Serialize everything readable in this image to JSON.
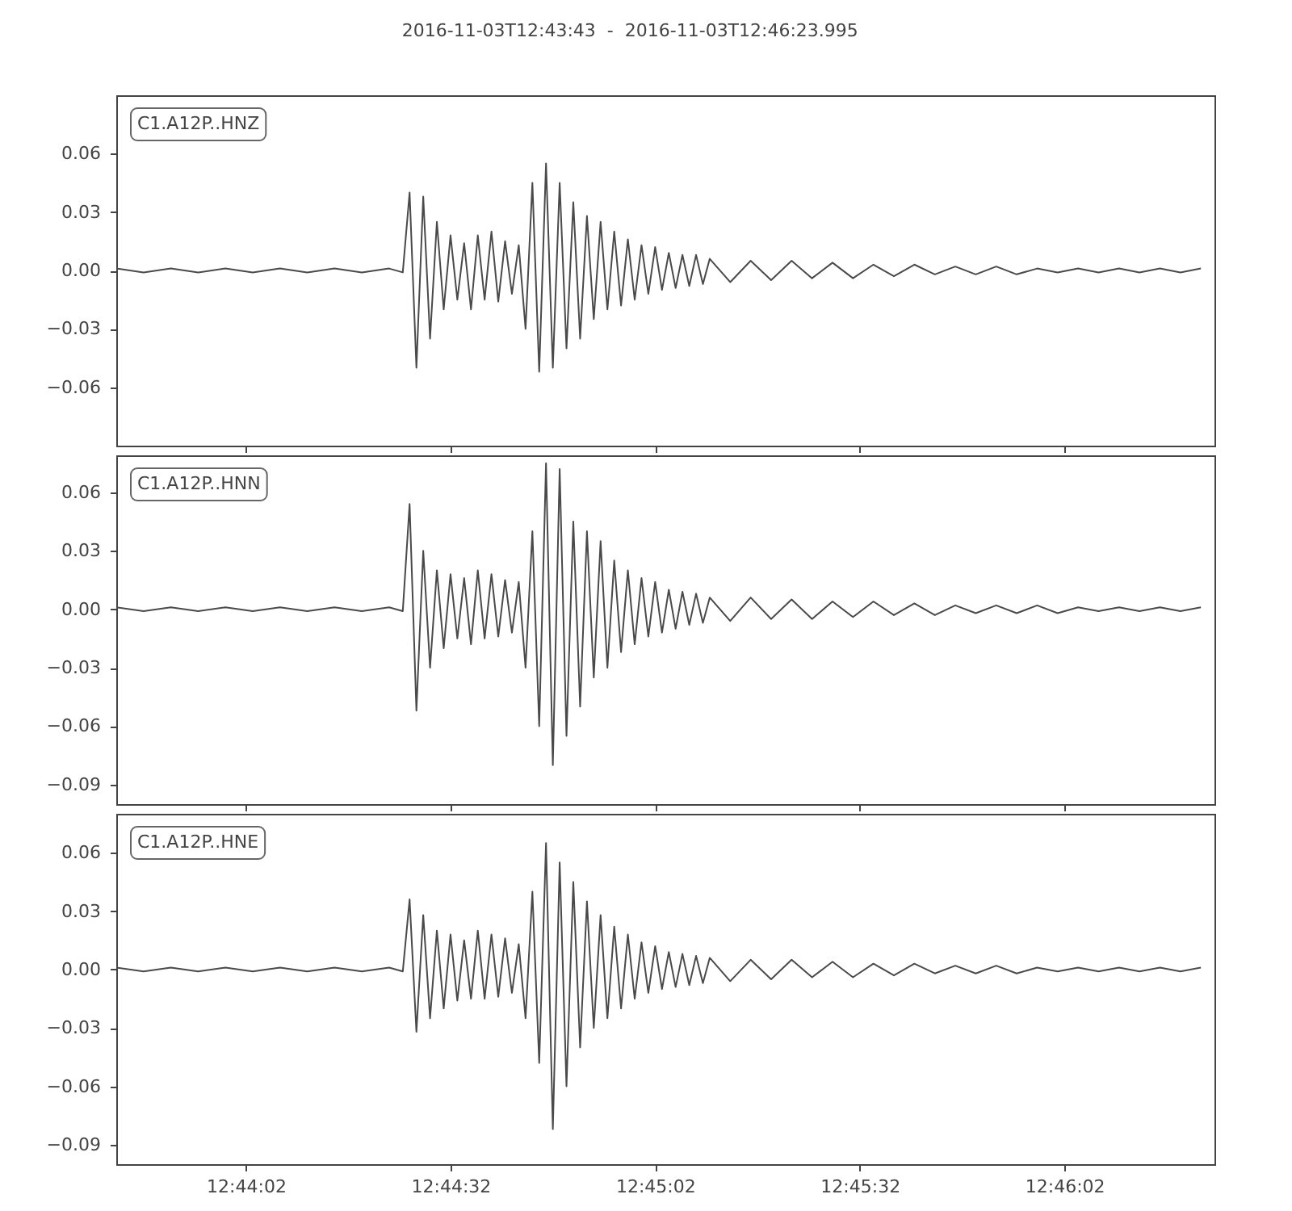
{
  "chart_data": [
    {
      "type": "line",
      "title": "2016-11-03T12:43:43  -  2016-11-03T12:46:23.995",
      "tick_labels": "y",
      "grid": false,
      "legend": "top left",
      "xlim": [
        "2016-11-03T12:43:43",
        "2016-11-03T12:46:23.995"
      ],
      "xticks": [
        {
          "value": "2016-11-03T12:44:02",
          "label": null
        },
        {
          "value": "2016-11-03T12:44:32",
          "label": null
        },
        {
          "value": "2016-11-03T12:45:02",
          "label": null
        },
        {
          "value": "2016-11-03T12:45:32",
          "label": null
        },
        {
          "value": "2016-11-03T12:46:02",
          "label": null
        }
      ],
      "ylim": [
        -0.09,
        0.09
      ],
      "yticks": [
        {
          "value": -0.06,
          "label": "−0.06"
        },
        {
          "value": -0.03,
          "label": "−0.03"
        },
        {
          "value": 0,
          "label": "0.00"
        },
        {
          "value": 0.03,
          "label": "0.03"
        },
        {
          "value": 0.06,
          "label": "0.06"
        }
      ],
      "x": [
        "2016-11-03T12:43:43",
        "2016-11-03T12:43:47",
        "2016-11-03T12:43:51",
        "2016-11-03T12:43:55",
        "2016-11-03T12:43:59",
        "2016-11-03T12:44:03",
        "2016-11-03T12:44:07",
        "2016-11-03T12:44:11",
        "2016-11-03T12:44:15",
        "2016-11-03T12:44:19",
        "2016-11-03T12:44:23",
        "2016-11-03T12:44:25",
        "2016-11-03T12:44:26",
        "2016-11-03T12:44:27",
        "2016-11-03T12:44:28",
        "2016-11-03T12:44:29",
        "2016-11-03T12:44:30",
        "2016-11-03T12:44:31",
        "2016-11-03T12:44:32",
        "2016-11-03T12:44:33",
        "2016-11-03T12:44:34",
        "2016-11-03T12:44:35",
        "2016-11-03T12:44:36",
        "2016-11-03T12:44:37",
        "2016-11-03T12:44:38",
        "2016-11-03T12:44:39",
        "2016-11-03T12:44:40",
        "2016-11-03T12:44:41",
        "2016-11-03T12:44:42",
        "2016-11-03T12:44:43",
        "2016-11-03T12:44:44",
        "2016-11-03T12:44:45",
        "2016-11-03T12:44:46",
        "2016-11-03T12:44:47",
        "2016-11-03T12:44:48",
        "2016-11-03T12:44:49",
        "2016-11-03T12:44:50",
        "2016-11-03T12:44:51",
        "2016-11-03T12:44:52",
        "2016-11-03T12:44:53",
        "2016-11-03T12:44:54",
        "2016-11-03T12:44:55",
        "2016-11-03T12:44:56",
        "2016-11-03T12:44:57",
        "2016-11-03T12:44:58",
        "2016-11-03T12:44:59",
        "2016-11-03T12:45:00",
        "2016-11-03T12:45:01",
        "2016-11-03T12:45:02",
        "2016-11-03T12:45:03",
        "2016-11-03T12:45:04",
        "2016-11-03T12:45:05",
        "2016-11-03T12:45:06",
        "2016-11-03T12:45:07",
        "2016-11-03T12:45:08",
        "2016-11-03T12:45:09",
        "2016-11-03T12:45:10",
        "2016-11-03T12:45:13",
        "2016-11-03T12:45:16",
        "2016-11-03T12:45:19",
        "2016-11-03T12:45:22",
        "2016-11-03T12:45:25",
        "2016-11-03T12:45:28",
        "2016-11-03T12:45:31",
        "2016-11-03T12:45:34",
        "2016-11-03T12:45:37",
        "2016-11-03T12:45:40",
        "2016-11-03T12:45:43",
        "2016-11-03T12:45:46",
        "2016-11-03T12:45:49",
        "2016-11-03T12:45:52",
        "2016-11-03T12:45:55",
        "2016-11-03T12:45:58",
        "2016-11-03T12:46:01",
        "2016-11-03T12:46:04",
        "2016-11-03T12:46:07",
        "2016-11-03T12:46:10",
        "2016-11-03T12:46:13",
        "2016-11-03T12:46:16",
        "2016-11-03T12:46:19",
        "2016-11-03T12:46:22"
      ],
      "series": [
        {
          "name": "C1.A12P..HNZ",
          "color": "#4a4a4a",
          "values": [
            0.001,
            -0.001,
            0.001,
            -0.001,
            0.001,
            -0.001,
            0.001,
            -0.001,
            0.001,
            -0.001,
            0.001,
            -0.001,
            0.04,
            -0.05,
            0.038,
            -0.035,
            0.025,
            -0.02,
            0.018,
            -0.015,
            0.014,
            -0.02,
            0.018,
            -0.015,
            0.02,
            -0.016,
            0.015,
            -0.012,
            0.013,
            -0.03,
            0.045,
            -0.052,
            0.055,
            -0.05,
            0.045,
            -0.04,
            0.035,
            -0.035,
            0.028,
            -0.025,
            0.025,
            -0.02,
            0.02,
            -0.018,
            0.016,
            -0.015,
            0.013,
            -0.012,
            0.012,
            -0.01,
            0.009,
            -0.009,
            0.008,
            -0.008,
            0.008,
            -0.007,
            0.006,
            -0.006,
            0.005,
            -0.005,
            0.005,
            -0.004,
            0.004,
            -0.004,
            0.003,
            -0.003,
            0.003,
            -0.002,
            0.002,
            -0.002,
            0.002,
            -0.002,
            0.001,
            -0.001,
            0.001,
            -0.001,
            0.001,
            -0.001,
            0.001,
            -0.001,
            0.001
          ]
        }
      ]
    },
    {
      "type": "line",
      "tick_labels": "y",
      "grid": false,
      "legend": "top left",
      "xlim": [
        "2016-11-03T12:43:43",
        "2016-11-03T12:46:23.995"
      ],
      "xticks": [
        {
          "value": "2016-11-03T12:44:02",
          "label": null
        },
        {
          "value": "2016-11-03T12:44:32",
          "label": null
        },
        {
          "value": "2016-11-03T12:45:02",
          "label": null
        },
        {
          "value": "2016-11-03T12:45:32",
          "label": null
        },
        {
          "value": "2016-11-03T12:46:02",
          "label": null
        }
      ],
      "ylim": [
        -0.1,
        0.079
      ],
      "yticks": [
        {
          "value": -0.09,
          "label": "−0.09"
        },
        {
          "value": -0.06,
          "label": "−0.06"
        },
        {
          "value": -0.03,
          "label": "−0.03"
        },
        {
          "value": 0,
          "label": "0.00"
        },
        {
          "value": 0.03,
          "label": "0.03"
        },
        {
          "value": 0.06,
          "label": "0.06"
        }
      ],
      "x": [
        "2016-11-03T12:43:43",
        "2016-11-03T12:43:47",
        "2016-11-03T12:43:51",
        "2016-11-03T12:43:55",
        "2016-11-03T12:43:59",
        "2016-11-03T12:44:03",
        "2016-11-03T12:44:07",
        "2016-11-03T12:44:11",
        "2016-11-03T12:44:15",
        "2016-11-03T12:44:19",
        "2016-11-03T12:44:23",
        "2016-11-03T12:44:25",
        "2016-11-03T12:44:26",
        "2016-11-03T12:44:27",
        "2016-11-03T12:44:28",
        "2016-11-03T12:44:29",
        "2016-11-03T12:44:30",
        "2016-11-03T12:44:31",
        "2016-11-03T12:44:32",
        "2016-11-03T12:44:33",
        "2016-11-03T12:44:34",
        "2016-11-03T12:44:35",
        "2016-11-03T12:44:36",
        "2016-11-03T12:44:37",
        "2016-11-03T12:44:38",
        "2016-11-03T12:44:39",
        "2016-11-03T12:44:40",
        "2016-11-03T12:44:41",
        "2016-11-03T12:44:42",
        "2016-11-03T12:44:43",
        "2016-11-03T12:44:44",
        "2016-11-03T12:44:45",
        "2016-11-03T12:44:46",
        "2016-11-03T12:44:47",
        "2016-11-03T12:44:48",
        "2016-11-03T12:44:49",
        "2016-11-03T12:44:50",
        "2016-11-03T12:44:51",
        "2016-11-03T12:44:52",
        "2016-11-03T12:44:53",
        "2016-11-03T12:44:54",
        "2016-11-03T12:44:55",
        "2016-11-03T12:44:56",
        "2016-11-03T12:44:57",
        "2016-11-03T12:44:58",
        "2016-11-03T12:44:59",
        "2016-11-03T12:45:00",
        "2016-11-03T12:45:01",
        "2016-11-03T12:45:02",
        "2016-11-03T12:45:03",
        "2016-11-03T12:45:04",
        "2016-11-03T12:45:05",
        "2016-11-03T12:45:06",
        "2016-11-03T12:45:07",
        "2016-11-03T12:45:08",
        "2016-11-03T12:45:09",
        "2016-11-03T12:45:10",
        "2016-11-03T12:45:13",
        "2016-11-03T12:45:16",
        "2016-11-03T12:45:19",
        "2016-11-03T12:45:22",
        "2016-11-03T12:45:25",
        "2016-11-03T12:45:28",
        "2016-11-03T12:45:31",
        "2016-11-03T12:45:34",
        "2016-11-03T12:45:37",
        "2016-11-03T12:45:40",
        "2016-11-03T12:45:43",
        "2016-11-03T12:45:46",
        "2016-11-03T12:45:49",
        "2016-11-03T12:45:52",
        "2016-11-03T12:45:55",
        "2016-11-03T12:45:58",
        "2016-11-03T12:46:01",
        "2016-11-03T12:46:04",
        "2016-11-03T12:46:07",
        "2016-11-03T12:46:10",
        "2016-11-03T12:46:13",
        "2016-11-03T12:46:16",
        "2016-11-03T12:46:19",
        "2016-11-03T12:46:22"
      ],
      "series": [
        {
          "name": "C1.A12P..HNN",
          "color": "#4a4a4a",
          "values": [
            0.001,
            -0.001,
            0.001,
            -0.001,
            0.001,
            -0.001,
            0.001,
            -0.001,
            0.001,
            -0.001,
            0.001,
            -0.001,
            0.054,
            -0.052,
            0.03,
            -0.03,
            0.02,
            -0.02,
            0.018,
            -0.015,
            0.016,
            -0.018,
            0.02,
            -0.015,
            0.018,
            -0.014,
            0.015,
            -0.012,
            0.014,
            -0.03,
            0.04,
            -0.06,
            0.075,
            -0.08,
            0.072,
            -0.065,
            0.045,
            -0.05,
            0.04,
            -0.035,
            0.035,
            -0.03,
            0.025,
            -0.022,
            0.02,
            -0.018,
            0.016,
            -0.014,
            0.014,
            -0.012,
            0.01,
            -0.01,
            0.009,
            -0.008,
            0.008,
            -0.007,
            0.006,
            -0.006,
            0.006,
            -0.005,
            0.005,
            -0.005,
            0.004,
            -0.004,
            0.004,
            -0.003,
            0.003,
            -0.003,
            0.002,
            -0.002,
            0.002,
            -0.002,
            0.002,
            -0.002,
            0.001,
            -0.001,
            0.001,
            -0.001,
            0.001,
            -0.001,
            0.001
          ]
        }
      ]
    },
    {
      "type": "line",
      "grid": false,
      "legend": "top left",
      "xlim": [
        "2016-11-03T12:43:43",
        "2016-11-03T12:46:23.995"
      ],
      "xticks": [
        {
          "value": "2016-11-03T12:44:02",
          "label": "12:44:02"
        },
        {
          "value": "2016-11-03T12:44:32",
          "label": "12:44:32"
        },
        {
          "value": "2016-11-03T12:45:02",
          "label": "12:45:02"
        },
        {
          "value": "2016-11-03T12:45:32",
          "label": "12:45:32"
        },
        {
          "value": "2016-11-03T12:46:02",
          "label": "12:46:02"
        }
      ],
      "ylim": [
        -0.1,
        0.08
      ],
      "yticks": [
        {
          "value": -0.09,
          "label": "−0.09"
        },
        {
          "value": -0.06,
          "label": "−0.06"
        },
        {
          "value": -0.03,
          "label": "−0.03"
        },
        {
          "value": 0,
          "label": "0.00"
        },
        {
          "value": 0.03,
          "label": "0.03"
        },
        {
          "value": 0.06,
          "label": "0.06"
        }
      ],
      "x": [
        "2016-11-03T12:43:43",
        "2016-11-03T12:43:47",
        "2016-11-03T12:43:51",
        "2016-11-03T12:43:55",
        "2016-11-03T12:43:59",
        "2016-11-03T12:44:03",
        "2016-11-03T12:44:07",
        "2016-11-03T12:44:11",
        "2016-11-03T12:44:15",
        "2016-11-03T12:44:19",
        "2016-11-03T12:44:23",
        "2016-11-03T12:44:25",
        "2016-11-03T12:44:26",
        "2016-11-03T12:44:27",
        "2016-11-03T12:44:28",
        "2016-11-03T12:44:29",
        "2016-11-03T12:44:30",
        "2016-11-03T12:44:31",
        "2016-11-03T12:44:32",
        "2016-11-03T12:44:33",
        "2016-11-03T12:44:34",
        "2016-11-03T12:44:35",
        "2016-11-03T12:44:36",
        "2016-11-03T12:44:37",
        "2016-11-03T12:44:38",
        "2016-11-03T12:44:39",
        "2016-11-03T12:44:40",
        "2016-11-03T12:44:41",
        "2016-11-03T12:44:42",
        "2016-11-03T12:44:43",
        "2016-11-03T12:44:44",
        "2016-11-03T12:44:45",
        "2016-11-03T12:44:46",
        "2016-11-03T12:44:47",
        "2016-11-03T12:44:48",
        "2016-11-03T12:44:49",
        "2016-11-03T12:44:50",
        "2016-11-03T12:44:51",
        "2016-11-03T12:44:52",
        "2016-11-03T12:44:53",
        "2016-11-03T12:44:54",
        "2016-11-03T12:44:55",
        "2016-11-03T12:44:56",
        "2016-11-03T12:44:57",
        "2016-11-03T12:44:58",
        "2016-11-03T12:44:59",
        "2016-11-03T12:45:00",
        "2016-11-03T12:45:01",
        "2016-11-03T12:45:02",
        "2016-11-03T12:45:03",
        "2016-11-03T12:45:04",
        "2016-11-03T12:45:05",
        "2016-11-03T12:45:06",
        "2016-11-03T12:45:07",
        "2016-11-03T12:45:08",
        "2016-11-03T12:45:09",
        "2016-11-03T12:45:10",
        "2016-11-03T12:45:13",
        "2016-11-03T12:45:16",
        "2016-11-03T12:45:19",
        "2016-11-03T12:45:22",
        "2016-11-03T12:45:25",
        "2016-11-03T12:45:28",
        "2016-11-03T12:45:31",
        "2016-11-03T12:45:34",
        "2016-11-03T12:45:37",
        "2016-11-03T12:45:40",
        "2016-11-03T12:45:43",
        "2016-11-03T12:45:46",
        "2016-11-03T12:45:49",
        "2016-11-03T12:45:52",
        "2016-11-03T12:45:55",
        "2016-11-03T12:45:58",
        "2016-11-03T12:46:01",
        "2016-11-03T12:46:04",
        "2016-11-03T12:46:07",
        "2016-11-03T12:46:10",
        "2016-11-03T12:46:13",
        "2016-11-03T12:46:16",
        "2016-11-03T12:46:19",
        "2016-11-03T12:46:22"
      ],
      "series": [
        {
          "name": "C1.A12P..HNE",
          "color": "#4a4a4a",
          "values": [
            0.001,
            -0.001,
            0.001,
            -0.001,
            0.001,
            -0.001,
            0.001,
            -0.001,
            0.001,
            -0.001,
            0.001,
            -0.001,
            0.036,
            -0.032,
            0.028,
            -0.025,
            0.02,
            -0.02,
            0.018,
            -0.016,
            0.015,
            -0.015,
            0.02,
            -0.015,
            0.018,
            -0.014,
            0.016,
            -0.012,
            0.013,
            -0.025,
            0.04,
            -0.048,
            0.065,
            -0.082,
            0.055,
            -0.06,
            0.045,
            -0.04,
            0.035,
            -0.03,
            0.028,
            -0.025,
            0.022,
            -0.02,
            0.018,
            -0.015,
            0.014,
            -0.012,
            0.012,
            -0.01,
            0.009,
            -0.009,
            0.008,
            -0.008,
            0.007,
            -0.007,
            0.006,
            -0.006,
            0.005,
            -0.005,
            0.005,
            -0.004,
            0.004,
            -0.004,
            0.003,
            -0.003,
            0.003,
            -0.002,
            0.002,
            -0.002,
            0.002,
            -0.002,
            0.001,
            -0.001,
            0.001,
            -0.001,
            0.001,
            -0.001,
            0.001,
            -0.001,
            0.001
          ]
        }
      ]
    }
  ]
}
